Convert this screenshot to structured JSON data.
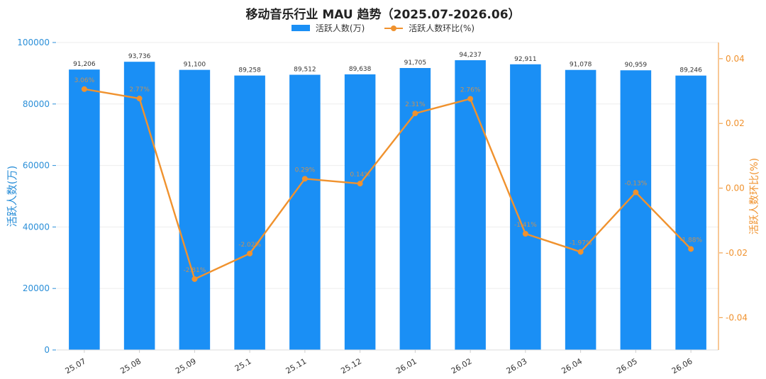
{
  "colors": {
    "bar": "#1a8ff5",
    "line": "#f0922e",
    "left_axis": "#2b8fd8",
    "right_axis": "#f0922e",
    "grid": "#eeeeee",
    "text": "#333333"
  },
  "chart_data": {
    "type": "bar",
    "title": "移动音乐行业 MAU 趋势（2025.07-2026.06）",
    "categories": [
      "25.07",
      "25.08",
      "25.09",
      "25.1",
      "25.11",
      "25.12",
      "26.01",
      "26.02",
      "26.03",
      "26.04",
      "26.05",
      "26.06"
    ],
    "series": [
      {
        "name": "活跃人数(万)",
        "type": "bar",
        "axis": "left",
        "values": [
          91206,
          93736,
          91100,
          89258,
          89512,
          89638,
          91705,
          94237,
          92911,
          91078,
          90959,
          89246
        ],
        "labels": [
          "91,206",
          "93,736",
          "91,100",
          "89,258",
          "89,512",
          "89,638",
          "91,705",
          "94,237",
          "92,911",
          "91,078",
          "90,959",
          "89,246"
        ]
      },
      {
        "name": "活跃人数环比(%)",
        "type": "line",
        "axis": "right",
        "values": [
          0.0306,
          0.0277,
          -0.0281,
          -0.0202,
          0.0029,
          0.0014,
          0.0231,
          0.0276,
          -0.0141,
          -0.0197,
          -0.0013,
          -0.0188
        ],
        "labels": [
          "3.06%",
          "2.77%",
          "-2.81%",
          "-2.02%",
          "0.29%",
          "0.14%",
          "2.31%",
          "2.76%",
          "-1.41%",
          "-1.97%",
          "-0.13%",
          "-1.88%"
        ]
      }
    ],
    "ylabel": "活跃人数(万)",
    "y2label": "活跃人数环比(%)",
    "ylim": [
      0,
      100000
    ],
    "y2lim": [
      -0.05,
      0.045
    ],
    "yticks": [
      0,
      20000,
      40000,
      60000,
      80000,
      100000
    ],
    "yticklabels": [
      "0",
      "20000",
      "40000",
      "60000",
      "80000",
      "100000"
    ],
    "y2ticks": [
      -0.04,
      -0.02,
      0.0,
      0.02,
      0.04
    ],
    "y2ticklabels": [
      "-0.04",
      "-0.02",
      "0.00",
      "0.02",
      "0.04"
    ],
    "grid": true,
    "legend_position": "top-center"
  }
}
